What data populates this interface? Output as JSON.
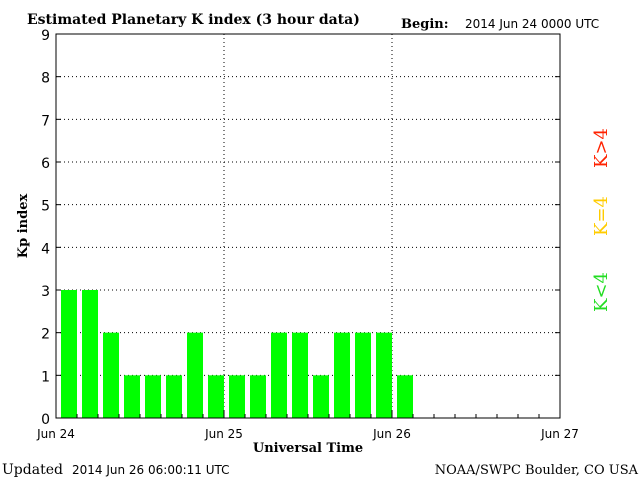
{
  "header": {
    "title": "Estimated Planetary K index (3 hour data)",
    "begin_label": "Begin:",
    "begin_value": "2014 Jun 24 0000 UTC"
  },
  "footer": {
    "updated_label": "Updated",
    "updated_value": "2014 Jun 26 06:00:11 UTC",
    "source": "NOAA/SWPC Boulder, CO USA"
  },
  "legend": {
    "items": [
      {
        "label": "K<4",
        "color": "#22dd22"
      },
      {
        "label": "K=4",
        "color": "#ffcc00"
      },
      {
        "label": "K>4",
        "color": "#ff2200"
      }
    ]
  },
  "chart_data": {
    "type": "bar",
    "xlabel": "Universal Time",
    "ylabel": "Kp index",
    "ylim": [
      0,
      9
    ],
    "yticks": [
      0,
      1,
      2,
      3,
      4,
      5,
      6,
      7,
      8,
      9
    ],
    "x_range_days": [
      0,
      3
    ],
    "x_tick_labels": [
      "Jun 24",
      "Jun 25",
      "Jun 26",
      "Jun 27"
    ],
    "grid": true,
    "bar_color": "#00ff00",
    "series": [
      {
        "values": [
          3,
          3,
          2,
          1,
          1,
          1,
          2,
          1,
          1,
          1,
          2,
          2,
          1,
          2,
          2,
          2,
          1
        ]
      }
    ]
  }
}
